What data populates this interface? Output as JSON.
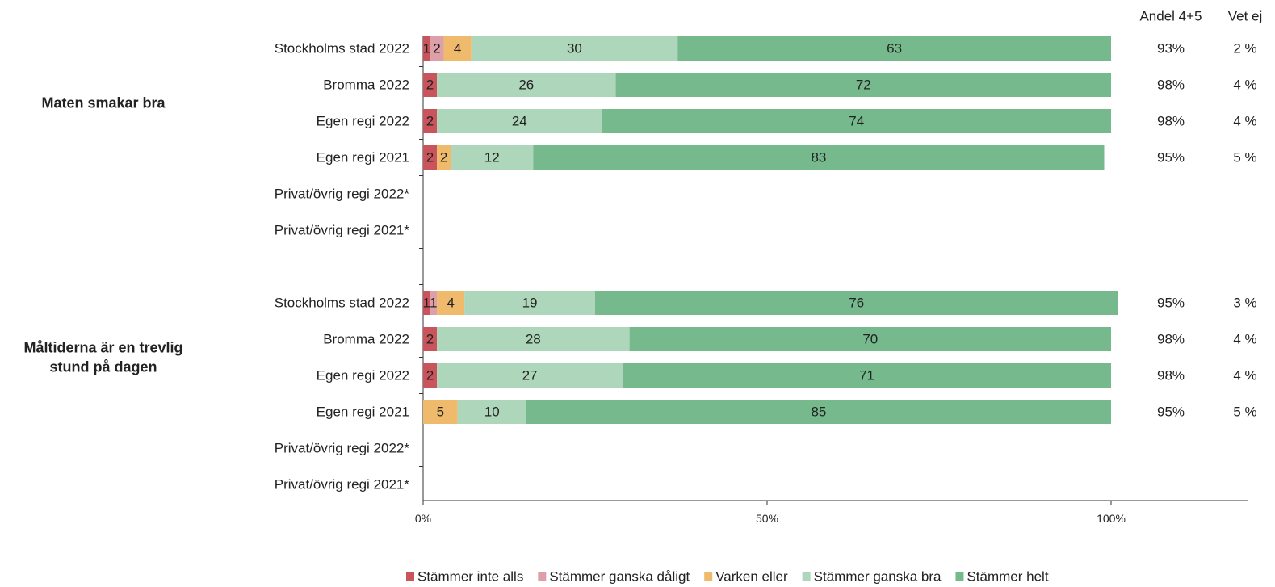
{
  "chart_data": {
    "type": "bar",
    "orientation": "horizontal",
    "stacked": true,
    "xaxis": {
      "range": [
        0,
        100
      ],
      "ticks": [
        "0%",
        "50%",
        "100%"
      ]
    },
    "extra_columns": {
      "share_header": "Andel 4+5",
      "dontknow_header": "Vet ej"
    },
    "series": [
      {
        "name": "Stämmer inte alls",
        "color": "#c9545c"
      },
      {
        "name": "Stämmer ganska dåligt",
        "color": "#dea0a8"
      },
      {
        "name": "Varken eller",
        "color": "#efba6c"
      },
      {
        "name": "Stämmer ganska bra",
        "color": "#aed6ba"
      },
      {
        "name": "Stämmer helt",
        "color": "#76b98d"
      }
    ],
    "groups": [
      {
        "title_lines": [
          "Maten smakar bra"
        ],
        "rows": [
          {
            "label": "Stockholms stad 2022",
            "values": [
              1,
              2,
              4,
              30,
              63
            ],
            "share": "93%",
            "dontknow": "2 %"
          },
          {
            "label": "Bromma 2022",
            "values": [
              2,
              0,
              0,
              26,
              72
            ],
            "share": "98%",
            "dontknow": "4 %"
          },
          {
            "label": "Egen regi 2022",
            "values": [
              2,
              0,
              0,
              24,
              74
            ],
            "share": "98%",
            "dontknow": "4 %"
          },
          {
            "label": "Egen regi 2021",
            "values": [
              2,
              0,
              2,
              12,
              83
            ],
            "share": "95%",
            "dontknow": "5 %"
          },
          {
            "label": "Privat/övrig regi 2022*",
            "values": null,
            "share": "",
            "dontknow": ""
          },
          {
            "label": "Privat/övrig regi 2021*",
            "values": null,
            "share": "",
            "dontknow": ""
          }
        ]
      },
      {
        "title_lines": [
          "Måltiderna är en trevlig",
          "stund på dagen"
        ],
        "rows": [
          {
            "label": "Stockholms stad 2022",
            "values": [
              1,
              1,
              4,
              19,
              76
            ],
            "share": "95%",
            "dontknow": "3 %"
          },
          {
            "label": "Bromma 2022",
            "values": [
              2,
              0,
              0,
              28,
              70
            ],
            "share": "98%",
            "dontknow": "4 %"
          },
          {
            "label": "Egen regi 2022",
            "values": [
              2,
              0,
              0,
              27,
              71
            ],
            "share": "98%",
            "dontknow": "4 %"
          },
          {
            "label": "Egen regi 2021",
            "values": [
              0,
              0,
              5,
              10,
              85
            ],
            "share": "95%",
            "dontknow": "5 %"
          },
          {
            "label": "Privat/övrig regi 2022*",
            "values": null,
            "share": "",
            "dontknow": ""
          },
          {
            "label": "Privat/övrig regi 2021*",
            "values": null,
            "share": "",
            "dontknow": ""
          }
        ]
      }
    ]
  }
}
